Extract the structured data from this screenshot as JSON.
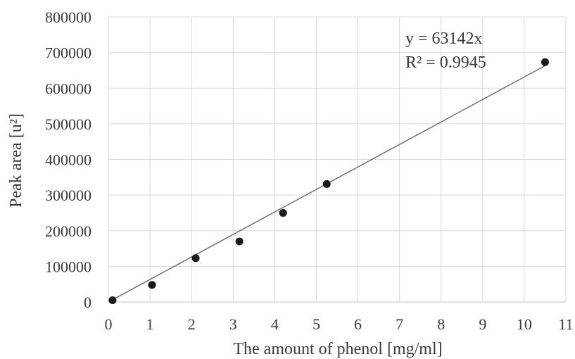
{
  "chart_data": {
    "type": "scatter",
    "title": "",
    "xlabel": "The amount of phenol [mg/ml]",
    "ylabel": "Peak area [u²]",
    "xlim": [
      0,
      11
    ],
    "ylim": [
      0,
      800000
    ],
    "x_ticks": [
      "0",
      "1",
      "2",
      "3",
      "4",
      "5",
      "6",
      "7",
      "8",
      "9",
      "10",
      "11"
    ],
    "y_ticks": [
      "0",
      "100000",
      "200000",
      "300000",
      "400000",
      "500000",
      "600000",
      "700000",
      "800000"
    ],
    "grid": true,
    "series": [
      {
        "x": [
          0.1,
          1.05,
          2.1,
          3.15,
          4.2,
          5.25,
          10.5
        ],
        "y": [
          5000,
          48000,
          123000,
          170000,
          250000,
          331000,
          673000
        ]
      }
    ],
    "trendline": {
      "type": "linear",
      "slope": 63142,
      "intercept": 0,
      "x_range": [
        0.1,
        10.5
      ]
    },
    "annotations": [
      "y = 63142x",
      "R² = 0.9945"
    ],
    "colors": {
      "points": "#1a1a1a",
      "trendline": "#707070",
      "grid": "#d9d9d9",
      "axis": "#bfbfbf"
    }
  }
}
